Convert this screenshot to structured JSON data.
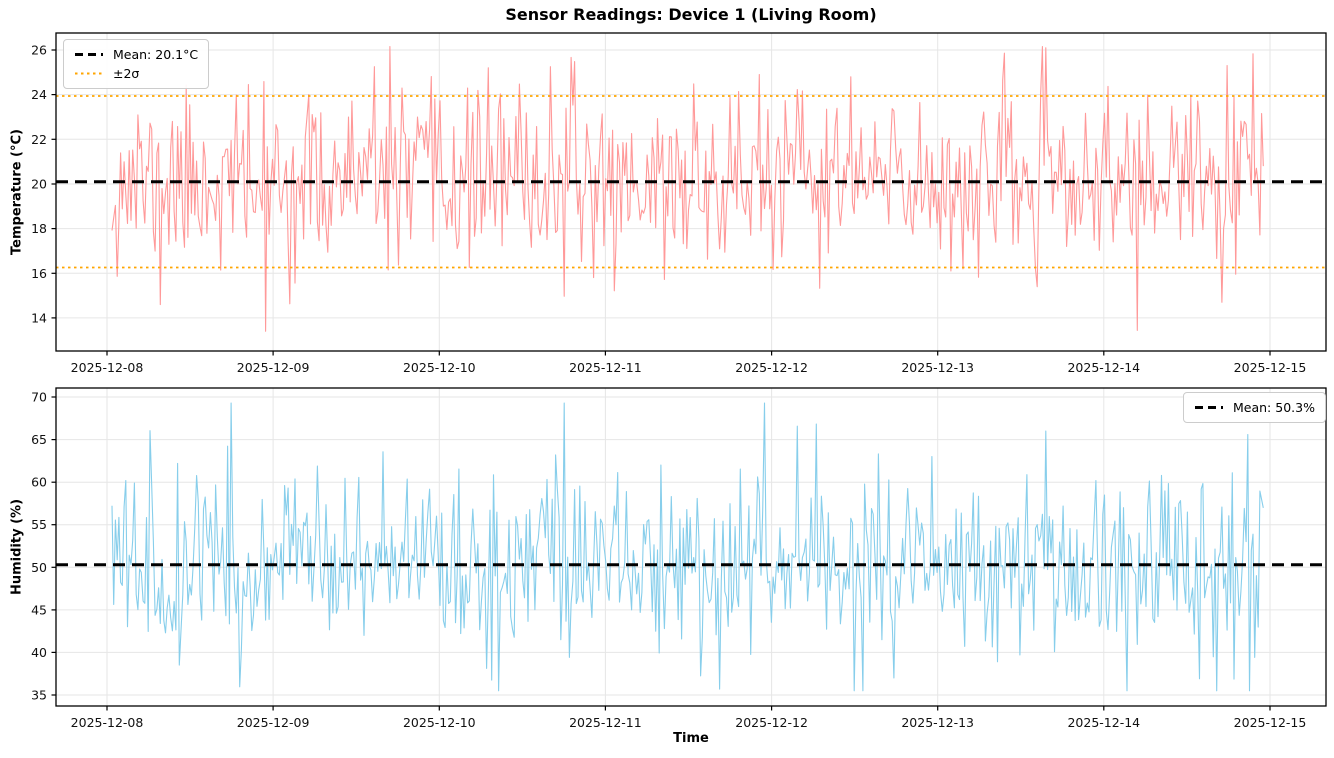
{
  "figure": {
    "title": "Sensor Readings: Device 1 (Living Room)",
    "background": "#ffffff"
  },
  "chart_data": [
    {
      "type": "line",
      "title": "Sensor Readings: Device 1 (Living Room)",
      "ylabel": "Temperature (°C)",
      "xlabel": "",
      "x_ticks": [
        "2025-12-08",
        "2025-12-09",
        "2025-12-10",
        "2025-12-11",
        "2025-12-12",
        "2025-12-13",
        "2025-12-14",
        "2025-12-15"
      ],
      "y_ticks": [
        14,
        16,
        18,
        20,
        22,
        24,
        26
      ],
      "ylim": [
        12.5,
        26.8
      ],
      "xlim_days": [
        -0.31,
        7.34
      ],
      "grid": true,
      "series": [
        {
          "name": "temperature",
          "color": "#ff9999",
          "mean": 20.1,
          "std": 1.92,
          "observed_min": 13.4,
          "observed_max": 26.15,
          "approx_points": 668,
          "span_days": [
            0.03,
            6.96
          ],
          "landmark_points": [
            {
              "day": 0.32,
              "value": 14.6
            },
            {
              "day": 0.95,
              "value": 13.4
            },
            {
              "day": 1.7,
              "value": 26.15
            },
            {
              "day": 2.29,
              "value": 25.2
            },
            {
              "day": 2.67,
              "value": 25.25
            },
            {
              "day": 3.93,
              "value": 24.9
            },
            {
              "day": 4.48,
              "value": 24.8
            },
            {
              "day": 5.6,
              "value": 15.4
            },
            {
              "day": 6.71,
              "value": 14.7
            },
            {
              "day": 6.74,
              "value": 25.3
            }
          ]
        }
      ],
      "reference_lines": {
        "mean": {
          "value": 20.1,
          "label": "Mean: 20.1°C",
          "color": "#000000",
          "style": "dashed"
        },
        "sigma_upper": {
          "value": 23.94,
          "label": "±2σ",
          "color": "#ffa500",
          "style": "dotted"
        },
        "sigma_lower": {
          "value": 16.26,
          "color": "#ffa500",
          "style": "dotted"
        }
      },
      "legend": {
        "position": "upper left",
        "entries": [
          {
            "label": "Mean: 20.1°C",
            "color": "#000000",
            "style": "dashed"
          },
          {
            "label": "±2σ",
            "color": "#ffa500",
            "style": "dotted"
          }
        ]
      }
    },
    {
      "type": "line",
      "title": "",
      "ylabel": "Humidity (%)",
      "xlabel": "Time",
      "x_ticks": [
        "2025-12-08",
        "2025-12-09",
        "2025-12-10",
        "2025-12-11",
        "2025-12-12",
        "2025-12-13",
        "2025-12-14",
        "2025-12-15"
      ],
      "y_ticks": [
        35,
        40,
        45,
        50,
        55,
        60,
        65,
        70
      ],
      "ylim": [
        33.7,
        71.1
      ],
      "xlim_days": [
        -0.31,
        7.34
      ],
      "grid": true,
      "series": [
        {
          "name": "humidity",
          "color": "#87ceeb",
          "mean": 50.3,
          "std": 5.5,
          "observed_min": 35.5,
          "observed_max": 69.3,
          "approx_points": 668,
          "span_days": [
            0.03,
            6.96
          ],
          "landmark_points": [
            {
              "day": 0.42,
              "value": 62.2
            },
            {
              "day": 0.75,
              "value": 69.3
            },
            {
              "day": 2.7,
              "value": 63.2
            },
            {
              "day": 3.33,
              "value": 62.0
            },
            {
              "day": 3.69,
              "value": 35.7
            },
            {
              "day": 4.74,
              "value": 37.0
            },
            {
              "day": 4.97,
              "value": 63.0
            },
            {
              "day": 5.65,
              "value": 66.0
            },
            {
              "day": 6.87,
              "value": 65.6
            },
            {
              "day": 6.88,
              "value": 35.5
            }
          ]
        }
      ],
      "reference_lines": {
        "mean": {
          "value": 50.3,
          "label": "Mean: 50.3%",
          "color": "#000000",
          "style": "dashed"
        }
      },
      "legend": {
        "position": "upper right",
        "entries": [
          {
            "label": "Mean: 50.3%",
            "color": "#000000",
            "style": "dashed"
          }
        ]
      }
    }
  ]
}
